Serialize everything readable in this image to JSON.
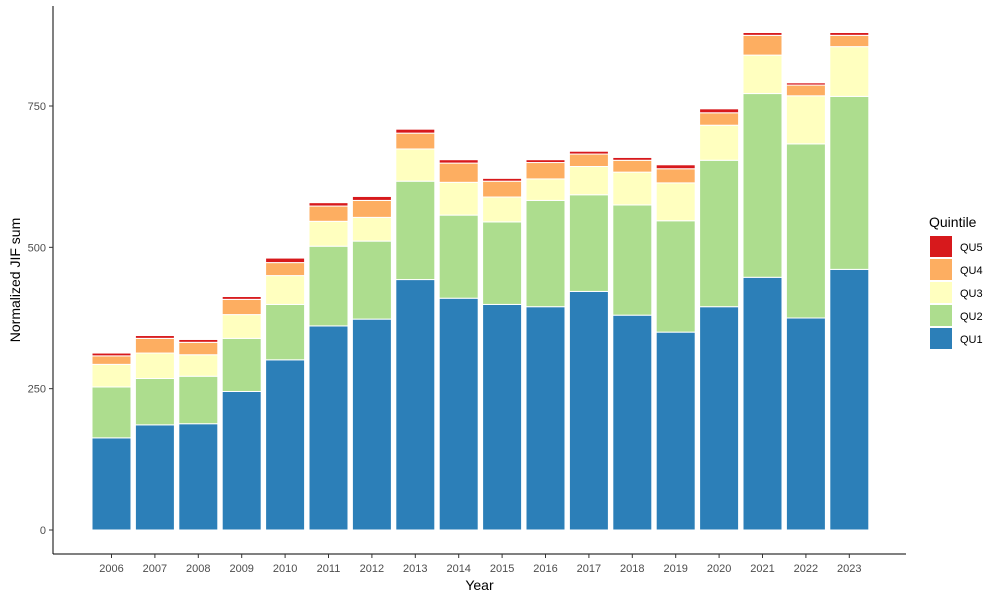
{
  "chart_data": {
    "type": "bar",
    "stacked": true,
    "xlabel": "Year",
    "ylabel": "Normalized JIF sum",
    "ylim": [
      0,
      890
    ],
    "yticks": [
      0,
      250,
      500,
      750
    ],
    "grid": false,
    "legend": {
      "title": "Quintile",
      "position": "right",
      "order": [
        "QU5",
        "QU4",
        "QU3",
        "QU2",
        "QU1"
      ]
    },
    "categories": [
      "2006",
      "2007",
      "2008",
      "2009",
      "2010",
      "2011",
      "2012",
      "2013",
      "2014",
      "2015",
      "2016",
      "2017",
      "2018",
      "2019",
      "2020",
      "2021",
      "2022",
      "2023"
    ],
    "series": [
      {
        "name": "QU1",
        "color": "#2c7fb8",
        "values": [
          163,
          186,
          188,
          245,
          301,
          361,
          373,
          443,
          410,
          399,
          395,
          422,
          380,
          350,
          395,
          447,
          375,
          461
        ]
      },
      {
        "name": "QU2",
        "color": "#addd8e",
        "values": [
          90,
          82,
          84,
          94,
          98,
          141,
          138,
          174,
          147,
          146,
          188,
          171,
          195,
          197,
          259,
          325,
          308,
          306
        ]
      },
      {
        "name": "QU3",
        "color": "#ffffbf",
        "values": [
          40,
          45,
          38,
          42,
          51,
          44,
          42,
          57,
          58,
          44,
          38,
          50,
          58,
          67,
          62,
          68,
          85,
          88
        ]
      },
      {
        "name": "QU4",
        "color": "#fdae61",
        "values": [
          15,
          26,
          22,
          27,
          23,
          27,
          30,
          28,
          34,
          28,
          29,
          22,
          21,
          25,
          22,
          35,
          19,
          20
        ]
      },
      {
        "name": "QU5",
        "color": "#d7191c",
        "values": [
          5,
          5,
          5,
          5,
          8,
          6,
          7,
          7,
          6,
          5,
          5,
          5,
          5,
          7,
          7,
          5,
          4,
          5
        ]
      }
    ]
  }
}
